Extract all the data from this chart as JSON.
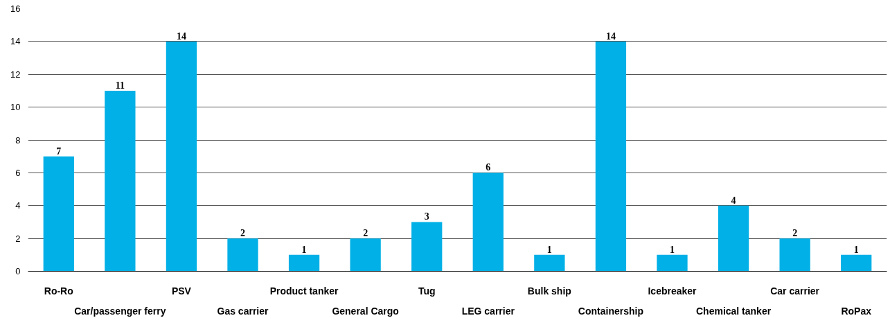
{
  "chart_data": {
    "type": "bar",
    "categories": [
      "Ro-Ro",
      "Car/passenger ferry",
      "PSV",
      "Gas carrier",
      "Product tanker",
      "General Cargo",
      "Tug",
      "LEG carrier",
      "Bulk ship",
      "Containership",
      "Icebreaker",
      "Chemical tanker",
      "Car carrier",
      "RoPax"
    ],
    "values": [
      7,
      11,
      14,
      2,
      1,
      2,
      3,
      6,
      1,
      14,
      1,
      4,
      2,
      1
    ],
    "color": "#00b0e6",
    "ylim": [
      0,
      16
    ],
    "yticks": [
      0,
      2,
      4,
      6,
      8,
      10,
      12,
      14,
      16
    ],
    "grid": "y",
    "data_labels": true
  }
}
